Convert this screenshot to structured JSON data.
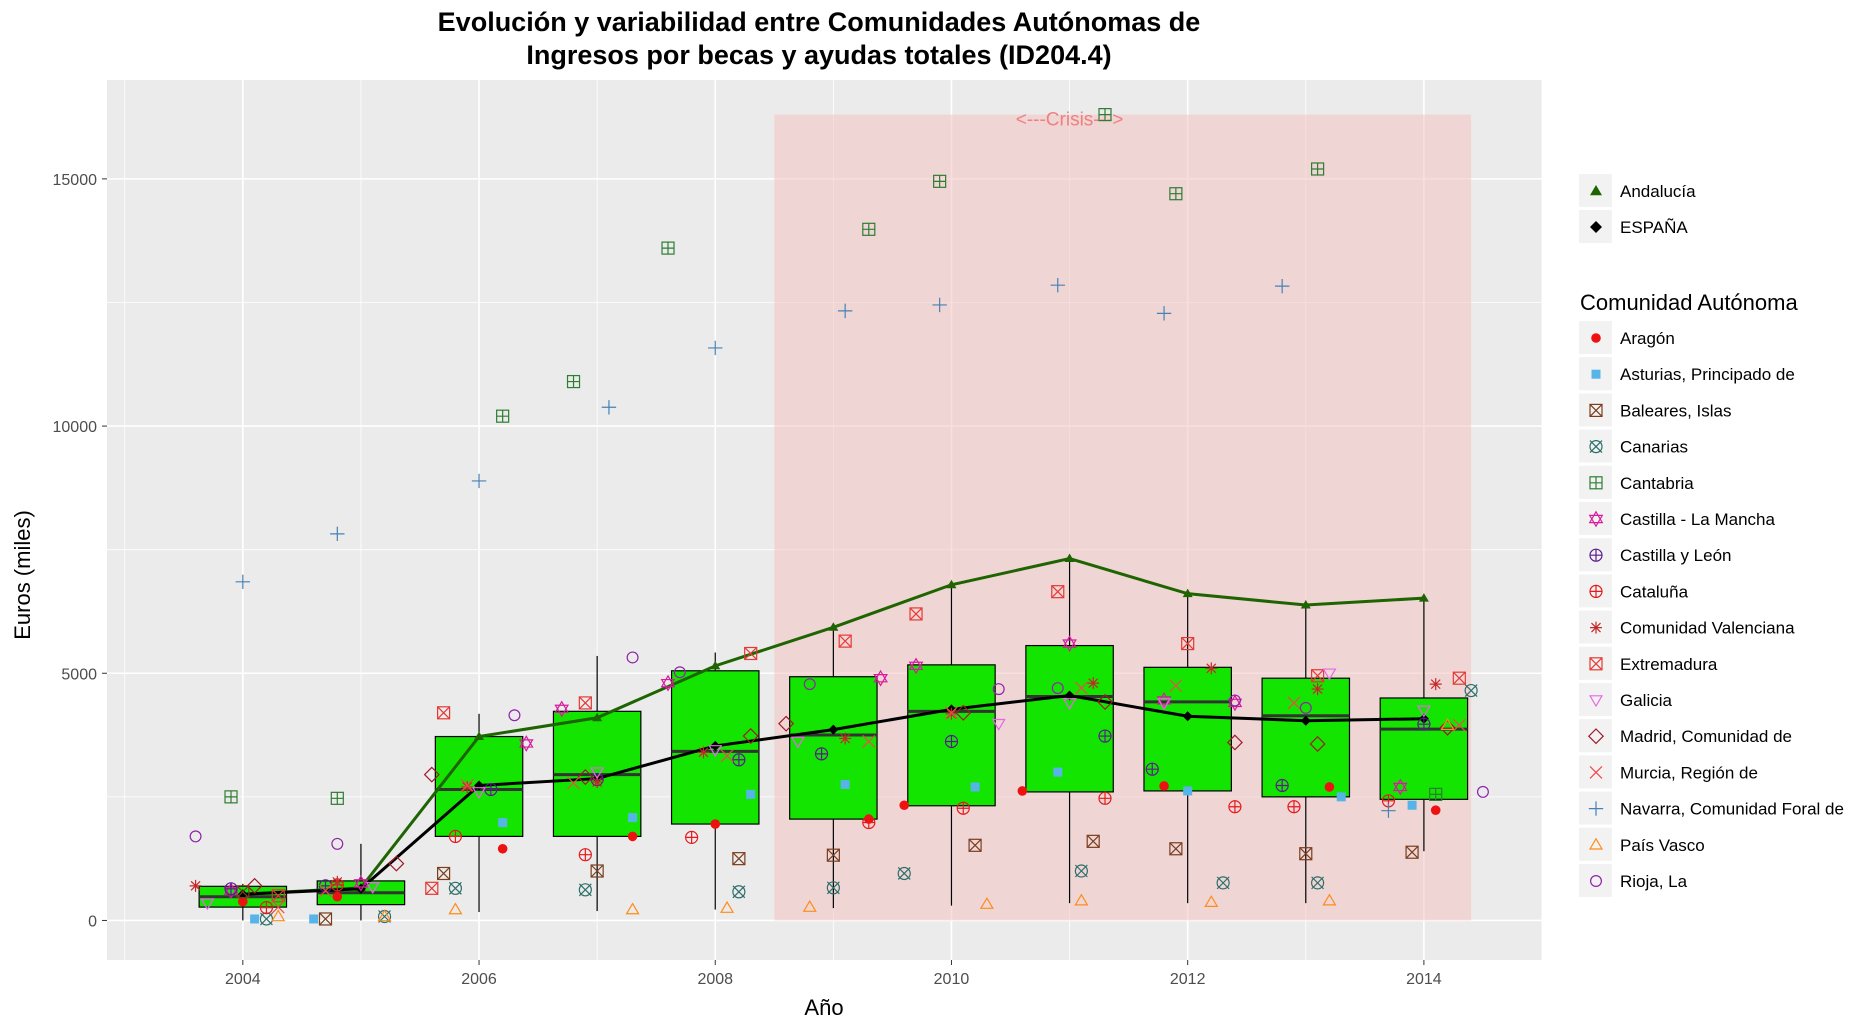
{
  "chart_data": {
    "type": "boxplot",
    "title_line1": "Evolución y variabilidad entre Comunidades Autónomas de",
    "title_line2": "Ingresos por becas y ayudas totales (ID204.4)",
    "xlabel": "Año",
    "ylabel": "Euros (miles)",
    "xlim": [
      2002.85,
      2015.0
    ],
    "ylim": [
      -800,
      17000
    ],
    "x_ticks": [
      2004,
      2006,
      2008,
      2010,
      2012,
      2014
    ],
    "y_ticks": [
      0,
      5000,
      10000,
      15000
    ],
    "background_color": "#ebebeb",
    "grid": true,
    "crisis": {
      "label": "<---Crisis--->",
      "x_start": 2008.5,
      "x_end": 2014.4,
      "y_max": 16300,
      "color": "#f4c2c2",
      "label_x": 2011.0,
      "label_y": 16200
    },
    "box_color": "#13e500",
    "boxes": [
      {
        "x": 2004,
        "q1": 270,
        "median": 480,
        "q3": 690,
        "whisker_low": 0,
        "whisker_high": 740
      },
      {
        "x": 2005,
        "q1": 320,
        "median": 560,
        "q3": 800,
        "whisker_low": 0,
        "whisker_high": 1550
      },
      {
        "x": 2006,
        "q1": 1700,
        "median": 2650,
        "q3": 3720,
        "whisker_low": 170,
        "whisker_high": 4180
      },
      {
        "x": 2007,
        "q1": 1700,
        "median": 2950,
        "q3": 4230,
        "whisker_low": 190,
        "whisker_high": 5350
      },
      {
        "x": 2008,
        "q1": 1950,
        "median": 3420,
        "q3": 5050,
        "whisker_low": 220,
        "whisker_high": 5420
      },
      {
        "x": 2009,
        "q1": 2050,
        "median": 3750,
        "q3": 4930,
        "whisker_low": 250,
        "whisker_high": 5950
      },
      {
        "x": 2010,
        "q1": 2320,
        "median": 4230,
        "q3": 5170,
        "whisker_low": 300,
        "whisker_high": 6800
      },
      {
        "x": 2011,
        "q1": 2600,
        "median": 4530,
        "q3": 5560,
        "whisker_low": 350,
        "whisker_high": 7300
      },
      {
        "x": 2012,
        "q1": 2620,
        "median": 4420,
        "q3": 5120,
        "whisker_low": 350,
        "whisker_high": 6600
      },
      {
        "x": 2013,
        "q1": 2500,
        "median": 4140,
        "q3": 4900,
        "whisker_low": 350,
        "whisker_high": 6400
      },
      {
        "x": 2014,
        "q1": 2450,
        "median": 3870,
        "q3": 4500,
        "whisker_low": 1400,
        "whisker_high": 6520
      }
    ],
    "lines": [
      {
        "name": "Andalucía",
        "color": "#1e6400",
        "marker": "triangle",
        "x": [
          2004,
          2005,
          2006,
          2007,
          2008,
          2009,
          2010,
          2011,
          2012,
          2013,
          2014
        ],
        "values": [
          530,
          660,
          3720,
          4100,
          5150,
          5930,
          6790,
          7320,
          6610,
          6380,
          6520
        ]
      },
      {
        "name": "ESPAÑA",
        "color": "#000000",
        "marker": "diamond",
        "x": [
          2004,
          2005,
          2006,
          2007,
          2008,
          2009,
          2010,
          2011,
          2012,
          2013,
          2014
        ],
        "values": [
          530,
          640,
          2730,
          2870,
          3530,
          3860,
          4270,
          4550,
          4130,
          4040,
          4080
        ]
      }
    ],
    "legend_title": "Comunidad Autónoma",
    "legend_placement": "right",
    "series": [
      {
        "name": "Aragón",
        "color": "#ee1111",
        "marker": "circle-filled",
        "x": [
          2004.0,
          2004.8,
          2006.2,
          2007.3,
          2008.0,
          2009.3,
          2009.6,
          2010.6,
          2011.8,
          2013.2,
          2014.1
        ],
        "values": [
          380,
          480,
          1450,
          1700,
          1950,
          2050,
          2330,
          2620,
          2720,
          2700,
          2230
        ]
      },
      {
        "name": "Asturias, Principado de",
        "color": "#56b4e9",
        "marker": "square-filled",
        "x": [
          2004.1,
          2004.6,
          2006.2,
          2007.3,
          2008.3,
          2009.1,
          2010.2,
          2010.9,
          2012.0,
          2013.3,
          2013.9
        ],
        "values": [
          30,
          30,
          1980,
          2080,
          2550,
          2750,
          2700,
          3000,
          2620,
          2500,
          2330
        ]
      },
      {
        "name": "Baleares, Islas",
        "color": "#7a3e1e",
        "marker": "square-x",
        "x": [
          2004.0,
          2004.7,
          2005.7,
          2007.0,
          2008.2,
          2009.0,
          2010.2,
          2011.2,
          2011.9,
          2013.0,
          2013.9
        ],
        "values": [
          580,
          30,
          950,
          1000,
          1250,
          1320,
          1520,
          1600,
          1450,
          1350,
          1380
        ]
      },
      {
        "name": "Canarias",
        "color": "#2c6e6a",
        "marker": "circle-x",
        "x": [
          2004.2,
          2005.2,
          2005.8,
          2006.9,
          2008.2,
          2009.0,
          2009.6,
          2011.1,
          2012.3,
          2013.1,
          2014.4
        ],
        "values": [
          30,
          80,
          650,
          620,
          580,
          660,
          950,
          1000,
          760,
          760,
          4650
        ]
      },
      {
        "name": "Cantabria",
        "color": "#2e7d32",
        "marker": "square-plus",
        "x": [
          2003.9,
          2004.8,
          2006.2,
          2006.8,
          2007.6,
          2009.3,
          2009.9,
          2011.3,
          2011.9,
          2013.1,
          2014.1
        ],
        "values": [
          2500,
          2470,
          10200,
          10900,
          13600,
          13980,
          14950,
          16300,
          14700,
          15200,
          2550
        ]
      },
      {
        "name": "Castilla - La Mancha",
        "color": "#d81b9e",
        "marker": "star-david",
        "x": [
          2003.9,
          2005.0,
          2006.4,
          2006.7,
          2007.6,
          2009.4,
          2009.7,
          2011.0,
          2011.8,
          2012.4,
          2013.8
        ],
        "values": [
          600,
          750,
          3580,
          4280,
          4800,
          4900,
          5150,
          5600,
          4450,
          4400,
          2700
        ]
      },
      {
        "name": "Castilla y León",
        "color": "#5b1b8e",
        "marker": "circle-plus",
        "x": [
          2003.9,
          2004.7,
          2006.1,
          2007.0,
          2008.2,
          2008.9,
          2010.0,
          2011.3,
          2011.7,
          2012.8,
          2014.0
        ],
        "values": [
          640,
          700,
          2650,
          2850,
          3250,
          3370,
          3620,
          3730,
          3060,
          2730,
          3970
        ]
      },
      {
        "name": "Cataluña",
        "color": "#e41a1c",
        "marker": "circle-plus-red",
        "x": [
          2004.2,
          2004.8,
          2005.8,
          2006.9,
          2007.8,
          2009.3,
          2010.1,
          2011.3,
          2012.4,
          2012.9,
          2013.7
        ],
        "values": [
          260,
          720,
          1700,
          1330,
          1680,
          1980,
          2270,
          2470,
          2300,
          2300,
          2420
        ]
      },
      {
        "name": "Comunidad Valenciana",
        "color": "#c62828",
        "marker": "asterisk",
        "x": [
          2003.6,
          2004.8,
          2005.9,
          2007.0,
          2007.9,
          2009.1,
          2010.0,
          2011.2,
          2012.2,
          2013.1,
          2014.1
        ],
        "values": [
          700,
          780,
          2700,
          2800,
          3400,
          3680,
          4180,
          4800,
          5100,
          4680,
          4780
        ]
      },
      {
        "name": "Extremadura",
        "color": "#e53935",
        "marker": "square-x-red",
        "x": [
          2004.3,
          2005.6,
          2005.7,
          2006.9,
          2008.3,
          2009.1,
          2009.7,
          2010.9,
          2012.0,
          2013.1,
          2014.3
        ],
        "values": [
          500,
          650,
          4200,
          4400,
          5400,
          5650,
          6200,
          6650,
          5600,
          4950,
          4900
        ]
      },
      {
        "name": "Galicia",
        "color": "#e766e9",
        "marker": "triangle-down",
        "x": [
          2003.7,
          2005.1,
          2006.0,
          2007.0,
          2008.0,
          2008.7,
          2010.4,
          2011.0,
          2011.8,
          2013.2,
          2014.0
        ],
        "values": [
          350,
          680,
          2600,
          3000,
          3450,
          3620,
          3980,
          4400,
          4400,
          5000,
          4250
        ]
      },
      {
        "name": "Madrid, Comunidad de",
        "color": "#a01a2a",
        "marker": "diamond-open",
        "x": [
          2004.1,
          2005.3,
          2005.6,
          2006.9,
          2008.3,
          2008.6,
          2010.1,
          2011.3,
          2012.4,
          2013.1,
          2014.2
        ],
        "values": [
          700,
          1150,
          2950,
          2900,
          3730,
          3980,
          4200,
          4420,
          3600,
          3570,
          3900
        ]
      },
      {
        "name": "Murcia, Región de",
        "color": "#ef4a4a",
        "marker": "x-cross",
        "x": [
          2004.3,
          2004.7,
          2005.9,
          2006.8,
          2008.1,
          2009.3,
          2010.0,
          2011.1,
          2011.9,
          2012.9,
          2014.3
        ],
        "values": [
          270,
          600,
          2730,
          2780,
          3330,
          3620,
          4200,
          4700,
          4750,
          4400,
          3950
        ]
      },
      {
        "name": "Navarra, Comunidad Foral de",
        "color": "#4682b4",
        "marker": "plus",
        "x": [
          2004.0,
          2004.8,
          2006.0,
          2007.1,
          2008.0,
          2009.1,
          2009.9,
          2010.9,
          2011.8,
          2012.8,
          2013.7
        ],
        "values": [
          6850,
          7820,
          8890,
          10380,
          11580,
          12330,
          12450,
          12850,
          12280,
          12830,
          2220
        ]
      },
      {
        "name": "País Vasco",
        "color": "#ff8c1a",
        "marker": "triangle-open",
        "x": [
          2004.3,
          2005.2,
          2005.8,
          2007.3,
          2008.1,
          2008.8,
          2010.3,
          2011.1,
          2012.2,
          2013.2,
          2014.2
        ],
        "values": [
          80,
          80,
          220,
          220,
          250,
          270,
          330,
          400,
          370,
          400,
          3950
        ]
      },
      {
        "name": "Rioja, La",
        "color": "#8e24aa",
        "marker": "circle-open",
        "x": [
          2003.6,
          2004.8,
          2006.3,
          2007.3,
          2007.7,
          2008.8,
          2010.4,
          2010.9,
          2012.4,
          2013.0,
          2014.5
        ],
        "values": [
          1700,
          1550,
          4150,
          5320,
          5020,
          4780,
          4680,
          4700,
          4450,
          4300,
          2600
        ]
      }
    ]
  }
}
